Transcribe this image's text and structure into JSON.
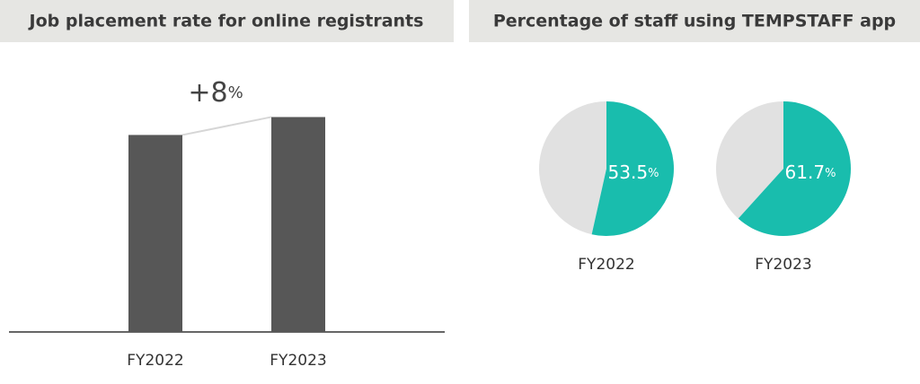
{
  "chart_data": [
    {
      "type": "bar",
      "title": "Job placement rate for online registrants",
      "categories": [
        "FY2022",
        "FY2023"
      ],
      "values": [
        88,
        96
      ],
      "color": "#575757",
      "ylim": [
        0,
        105
      ],
      "annotation": "+8",
      "annotation_unit": "%"
    },
    {
      "type": "pie",
      "title": "Percentage of staff using TEMPSTAFF app",
      "categories": [
        "FY2022",
        "FY2023"
      ],
      "values": [
        53.5,
        61.7
      ],
      "unit": "%",
      "color": "#19bdad",
      "rest_color": "#e1e1e1"
    }
  ]
}
